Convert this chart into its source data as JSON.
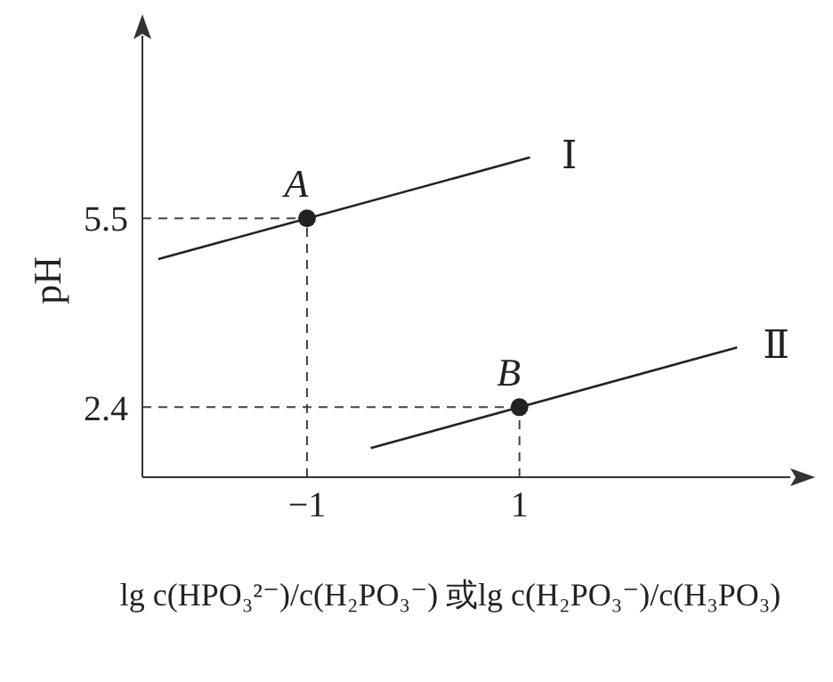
{
  "chart_data": {
    "type": "line",
    "xlabel": "lg c(HPO₃²⁻)/c(H₂PO₃⁻) 或lg c(H₂PO₃⁻)/c(H₃PO₃)",
    "ylabel": "pH",
    "xlim": [
      -2.55,
      3.55
    ],
    "ylim": [
      1.25,
      8.5
    ],
    "xticks": [
      -1,
      1
    ],
    "yticks": [
      2.4,
      5.5
    ],
    "line_style": "solid",
    "series": [
      {
        "name": "Ⅰ",
        "color": "#222222",
        "x": [
          -2.4,
          1.1
        ],
        "values": [
          4.83,
          6.5
        ]
      },
      {
        "name": "Ⅱ",
        "color": "#222222",
        "x": [
          -0.4,
          3.05
        ],
        "values": [
          1.73,
          3.38
        ]
      },
      {
        "type": "scatter",
        "color": "#222222",
        "marker": "circle",
        "x": [
          -1,
          1
        ],
        "values": [
          5.5,
          2.4
        ]
      }
    ],
    "annotations": [
      {
        "text": "A",
        "x": -1,
        "y": 5.5
      },
      {
        "text": "B",
        "x": 1,
        "y": 2.4
      }
    ]
  }
}
